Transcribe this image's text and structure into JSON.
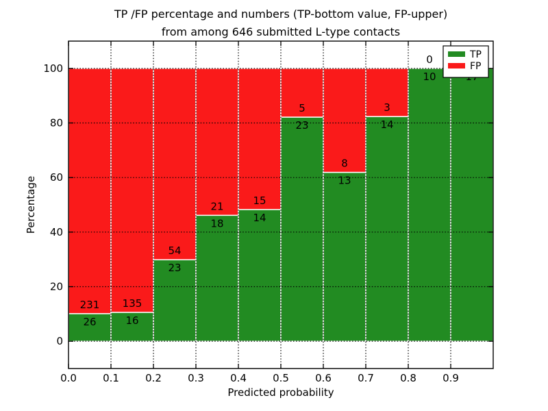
{
  "chart_data": {
    "type": "bar",
    "subtype": "stacked-percentage",
    "title_lines": [
      "TP /FP percentage and numbers (TP-bottom value, FP-upper)",
      "from among 646 submitted L-type contacts"
    ],
    "xlabel": "Predicted probability",
    "ylabel": "Percentage",
    "xlim": [
      0.0,
      1.0
    ],
    "ylim": [
      -10,
      110
    ],
    "grid": true,
    "x_tick_labels": [
      "0.0",
      "0.1",
      "0.2",
      "0.3",
      "0.4",
      "0.5",
      "0.6",
      "0.7",
      "0.8",
      "0.9"
    ],
    "x_tick_values": [
      0.0,
      0.1,
      0.2,
      0.3,
      0.4,
      0.5,
      0.6,
      0.7,
      0.8,
      0.9
    ],
    "y_tick_values": [
      0,
      20,
      40,
      60,
      80,
      100
    ],
    "bar_width": 0.1,
    "categories": [
      "0.0-0.1",
      "0.1-0.2",
      "0.2-0.3",
      "0.3-0.4",
      "0.4-0.5",
      "0.5-0.6",
      "0.6-0.7",
      "0.7-0.8",
      "0.8-0.9",
      "0.9-1.0"
    ],
    "series": [
      {
        "name": "TP",
        "counts": [
          26,
          16,
          23,
          18,
          14,
          23,
          13,
          14,
          10,
          17
        ],
        "color": "#228b22"
      },
      {
        "name": "FP",
        "counts": [
          231,
          135,
          54,
          21,
          15,
          5,
          8,
          3,
          0,
          0
        ],
        "color": "#fa1a1a"
      }
    ],
    "legend": {
      "position": "upper-right",
      "entries": [
        {
          "label": "TP",
          "color": "#228b22"
        },
        {
          "label": "FP",
          "color": "#fa1a1a"
        }
      ]
    },
    "colors": {
      "tp": "#228b22",
      "fp": "#fa1a1a",
      "grid": "#000000",
      "bar_edge": "#ffffff",
      "spine": "#000000",
      "background": "#ffffff"
    }
  }
}
